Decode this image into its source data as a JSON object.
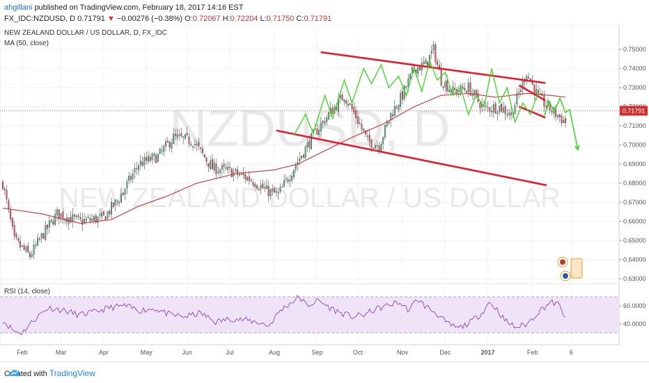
{
  "header": {
    "user": "ahgillani",
    "published": "published on TradingView.com, February 18, 2017 14:16 EST",
    "symbol": "FX_IDC:NZDUSD, D",
    "last": "0.71791",
    "change_arrow": "▼",
    "change": "−0.00276 (−0.38%)",
    "o_label": "O:",
    "o_value": "0.72067",
    "h_label": "H:",
    "h_value": "0.72204",
    "l_label": "L:",
    "l_value": "0.71750",
    "c_label": "C:",
    "c_value": "0.71791"
  },
  "footer": {
    "created_with": "Created with",
    "brand": "TradingView"
  },
  "colors": {
    "up": "#53b987",
    "down": "#eb4d5c",
    "ma": "#d32f2f",
    "channel": "#e8182a",
    "projection": "#43d62b",
    "rsi_line": "#8e44ad",
    "rsi_band": "#efe3f7",
    "price_tag": "#d32f2f"
  },
  "chart_data": [
    {
      "type": "candlestick",
      "title": "NEW ZEALAND DOLLAR / US DOLLAR, D, FX_IDC",
      "indicator": "MA (50, close)",
      "watermark_symbol": "NZDUSD, D",
      "watermark_name": "NEW ZEALAND DOLLAR / US DOLLAR",
      "last_price_label": "0.71791",
      "x_ticks": [
        "Feb",
        "Mar",
        "Apr",
        "May",
        "Jun",
        "Jul",
        "Aug",
        "Sep",
        "Oct",
        "Nov",
        "Dec",
        "2017",
        "Feb",
        "6"
      ],
      "y_ticks": [
        "0.75000",
        "0.74000",
        "0.73000",
        "0.72000",
        "0.71000",
        "0.70000",
        "0.69000",
        "0.68000",
        "0.67000",
        "0.66000",
        "0.65000",
        "0.64000",
        "0.63000"
      ],
      "ylim": [
        0.6275,
        0.7555
      ],
      "x_index_range": [
        0,
        290
      ],
      "close_waypoints": [
        [
          0,
          0.68
        ],
        [
          6,
          0.65
        ],
        [
          14,
          0.642
        ],
        [
          20,
          0.652
        ],
        [
          28,
          0.664
        ],
        [
          40,
          0.66
        ],
        [
          52,
          0.662
        ],
        [
          60,
          0.672
        ],
        [
          70,
          0.69
        ],
        [
          80,
          0.694
        ],
        [
          88,
          0.704
        ],
        [
          98,
          0.702
        ],
        [
          108,
          0.688
        ],
        [
          118,
          0.686
        ],
        [
          128,
          0.682
        ],
        [
          136,
          0.676
        ],
        [
          142,
          0.674
        ],
        [
          150,
          0.688
        ],
        [
          160,
          0.705
        ],
        [
          168,
          0.716
        ],
        [
          176,
          0.726
        ],
        [
          182,
          0.715
        ],
        [
          188,
          0.702
        ],
        [
          194,
          0.7
        ],
        [
          200,
          0.716
        ],
        [
          206,
          0.726
        ],
        [
          212,
          0.74
        ],
        [
          218,
          0.742
        ],
        [
          222,
          0.75
        ],
        [
          226,
          0.734
        ],
        [
          232,
          0.728
        ],
        [
          240,
          0.73
        ],
        [
          248,
          0.719
        ],
        [
          256,
          0.72
        ],
        [
          262,
          0.716
        ],
        [
          270,
          0.738
        ],
        [
          276,
          0.725
        ],
        [
          282,
          0.719
        ],
        [
          290,
          0.712
        ]
      ],
      "ma50_waypoints": [
        [
          0,
          0.667
        ],
        [
          20,
          0.664
        ],
        [
          40,
          0.659
        ],
        [
          56,
          0.661
        ],
        [
          70,
          0.668
        ],
        [
          84,
          0.673
        ],
        [
          100,
          0.68
        ],
        [
          120,
          0.685
        ],
        [
          140,
          0.687
        ],
        [
          152,
          0.69
        ],
        [
          166,
          0.697
        ],
        [
          180,
          0.704
        ],
        [
          196,
          0.711
        ],
        [
          212,
          0.72
        ],
        [
          226,
          0.726
        ],
        [
          240,
          0.727
        ],
        [
          254,
          0.725
        ],
        [
          270,
          0.727
        ],
        [
          282,
          0.726
        ],
        [
          290,
          0.725
        ]
      ],
      "channel_lines": [
        {
          "from": [
            "Sep 05 2016",
            0.7485
          ],
          "to": [
            "Feb 13 2017",
            0.7325
          ]
        },
        {
          "from": [
            "Aug 04 2016",
            0.7075
          ],
          "to": [
            "Feb 14 2017",
            0.679
          ]
        },
        {
          "from": [
            "Jan 26 2017",
            0.731
          ],
          "to": [
            "Feb 13 2017",
            0.7235
          ]
        },
        {
          "from": [
            "Jan 26 2017",
            0.72
          ],
          "to": [
            "Feb 13 2017",
            0.7145
          ]
        }
      ],
      "projection_path": [
        [
          "Feb 13 2017",
          0.7155
        ],
        [
          "Feb 16 2017",
          0.723
        ],
        [
          "Feb 20 2017",
          0.7175
        ],
        [
          "Feb 24 2017",
          0.7245
        ],
        [
          "Feb 28 2017",
          0.717
        ],
        [
          "Mar 03 2017",
          0.7185
        ],
        [
          "Mar 09 2017",
          0.6975
        ]
      ]
    },
    {
      "type": "line",
      "title": "RSI (14, close)",
      "y_ticks": [
        "60.0000",
        "40.0000"
      ],
      "ylim": [
        20,
        80
      ],
      "band": [
        30,
        70
      ],
      "waypoints": [
        [
          0,
          44
        ],
        [
          6,
          32
        ],
        [
          10,
          30
        ],
        [
          18,
          48
        ],
        [
          24,
          58
        ],
        [
          32,
          55
        ],
        [
          40,
          50
        ],
        [
          48,
          53
        ],
        [
          56,
          58
        ],
        [
          64,
          60
        ],
        [
          72,
          55
        ],
        [
          80,
          57
        ],
        [
          88,
          50
        ],
        [
          96,
          48
        ],
        [
          104,
          52
        ],
        [
          112,
          42
        ],
        [
          120,
          46
        ],
        [
          128,
          44
        ],
        [
          134,
          42
        ],
        [
          140,
          38
        ],
        [
          146,
          55
        ],
        [
          152,
          64
        ],
        [
          156,
          70
        ],
        [
          160,
          60
        ],
        [
          166,
          66
        ],
        [
          172,
          58
        ],
        [
          178,
          52
        ],
        [
          184,
          48
        ],
        [
          190,
          50
        ],
        [
          196,
          56
        ],
        [
          202,
          60
        ],
        [
          208,
          64
        ],
        [
          214,
          55
        ],
        [
          218,
          68
        ],
        [
          222,
          60
        ],
        [
          228,
          52
        ],
        [
          234,
          40
        ],
        [
          240,
          35
        ],
        [
          246,
          42
        ],
        [
          252,
          52
        ],
        [
          256,
          64
        ],
        [
          260,
          56
        ],
        [
          264,
          44
        ],
        [
          270,
          36
        ],
        [
          276,
          40
        ],
        [
          282,
          54
        ],
        [
          288,
          64
        ],
        [
          292,
          62
        ],
        [
          296,
          48
        ]
      ]
    }
  ]
}
